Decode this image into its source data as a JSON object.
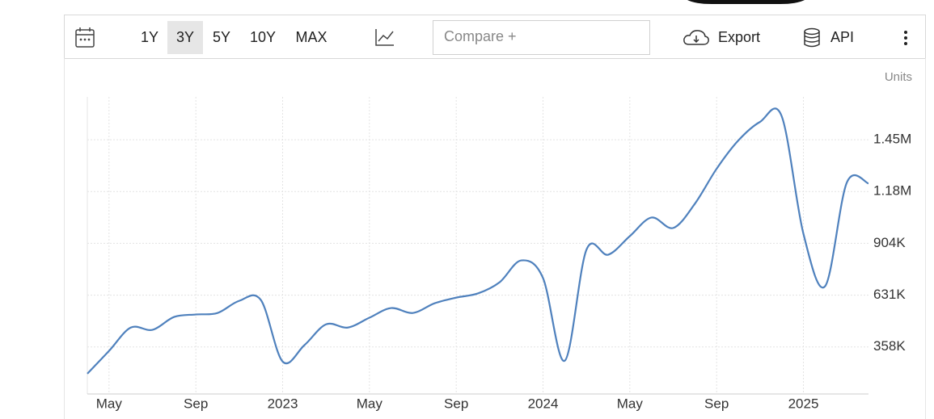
{
  "toolbar": {
    "ranges": [
      "1Y",
      "3Y",
      "5Y",
      "10Y",
      "MAX"
    ],
    "compare_placeholder": "Compare +",
    "export": "Export",
    "api": "API"
  },
  "chart_data": {
    "type": "line",
    "y_label": "Units",
    "categories": [
      null,
      "May",
      null,
      null,
      null,
      "Sep",
      null,
      null,
      null,
      "2023",
      null,
      null,
      null,
      "May",
      null,
      null,
      null,
      "Sep",
      null,
      null,
      null,
      "2024",
      null,
      null,
      null,
      "May",
      null,
      null,
      null,
      "Sep",
      null,
      null,
      null,
      "2025",
      null,
      null,
      null
    ],
    "values": [
      217000,
      337000,
      460000,
      448000,
      516000,
      529000,
      537000,
      601000,
      605000,
      281000,
      367000,
      477000,
      460000,
      512000,
      563000,
      537000,
      588000,
      618000,
      640000,
      699000,
      814000,
      721000,
      285000,
      870000,
      844000,
      942000,
      1040000,
      985000,
      1113000,
      1297000,
      1446000,
      1544000,
      1574000,
      955000,
      678000,
      1224000,
      1220000
    ],
    "color": "#4f81bd",
    "ylim": [
      110000,
      1676000
    ],
    "yticks": [
      {
        "value": 358000,
        "label": "358K"
      },
      {
        "value": 631000,
        "label": "631K"
      },
      {
        "value": 904000,
        "label": "904K"
      },
      {
        "value": 1177000,
        "label": "1.18M"
      },
      {
        "value": 1450000,
        "label": "1.45M"
      }
    ],
    "grid": true
  }
}
